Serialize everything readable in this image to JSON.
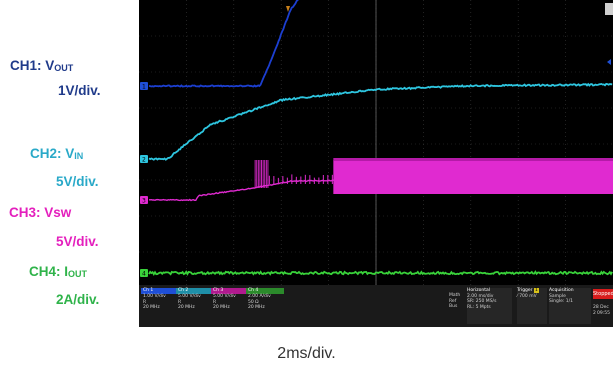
{
  "labels": {
    "ch1": {
      "name": "CH1: V",
      "sub": "OUT",
      "scale": "1V/div.",
      "color": "#1f3a8a"
    },
    "ch2": {
      "name": "CH2: V",
      "sub": "IN",
      "scale": "5V/div.",
      "color": "#29a9c8"
    },
    "ch3": {
      "name": "CH3: Vsw",
      "scale": "5V/div.",
      "color": "#e41fbd"
    },
    "ch4": {
      "name": "CH4: I",
      "sub": "OUT",
      "scale": "2A/div.",
      "color": "#2fb34a"
    }
  },
  "time_scale": "2ms/div.",
  "scope_panel": {
    "ch_boxes": [
      {
        "hdr": "Ch 1",
        "vdiv": "1.00 V/div",
        "coupling": "R",
        "bw": "20 MHz",
        "color": "#1f4fd6"
      },
      {
        "hdr": "Ch 2",
        "vdiv": "5.00 V/div",
        "coupling": "R",
        "bw": "20 MHz",
        "color": "#1f8fa8"
      },
      {
        "hdr": "Ch 3",
        "vdiv": "5.00 V/div",
        "coupling": "R",
        "bw": "20 MHz",
        "color": "#b01a8e"
      },
      {
        "hdr": "Ch 4",
        "vdiv": "2.00 A/div",
        "coupling": "50 Ω",
        "bw": "20 MHz",
        "color": "#2b8a2b"
      }
    ],
    "math_ref_bus": "Math Ref Bus",
    "horizontal": {
      "title": "Horizontal",
      "line1": "2.00 ms/div",
      "line2": "SR: 250 MS/s",
      "line3": "RL: 5 Mpts"
    },
    "trigger": {
      "title": "Trigger",
      "ch": "1",
      "line1": "700 mV"
    },
    "acquisition": {
      "title": "Acquisition",
      "line1": "Sample",
      "line2": "Single: 1/1"
    },
    "stop": "Stopped",
    "date": "28 Dec 2",
    "time": "09:55"
  },
  "chart_data": {
    "type": "line",
    "title": "",
    "xlabel": "2ms/div.",
    "x_divisions": 10,
    "y_divisions": 8,
    "x_unit": "div",
    "series": [
      {
        "name": "CH1: VOUT",
        "color": "#1c3fd1",
        "points": [
          [
            0,
            0.0
          ],
          [
            2.55,
            0.0
          ],
          [
            2.8,
            0.3
          ],
          [
            3.2,
            0.85
          ],
          [
            3.55,
            1.1
          ],
          [
            10,
            1.1
          ]
        ],
        "scale": "1V/div"
      },
      {
        "name": "CH2: VIN",
        "color": "#2ec6e0",
        "points": [
          [
            0,
            0.0
          ],
          [
            0.6,
            0.0
          ],
          [
            1.5,
            0.55
          ],
          [
            3.0,
            0.95
          ],
          [
            5.0,
            1.12
          ],
          [
            7.0,
            1.18
          ],
          [
            10,
            1.2
          ]
        ],
        "scale": "5V/div"
      },
      {
        "name": "CH3: Vsw",
        "color": "#e02ad0",
        "points": [
          [
            0,
            0.0
          ],
          [
            1.2,
            0.0
          ],
          [
            1.25,
            0.1
          ],
          [
            2.5,
            0.3
          ],
          [
            3.2,
            0.45
          ],
          [
            10,
            0.55
          ]
        ],
        "switching_start_div": 2.5,
        "switching_full_div": 4.1,
        "scale": "5V/div"
      },
      {
        "name": "CH4: IOUT",
        "color": "#39d23a",
        "points": [
          [
            0,
            0.0
          ],
          [
            10,
            0.0
          ]
        ],
        "scale": "2A/div"
      }
    ]
  }
}
